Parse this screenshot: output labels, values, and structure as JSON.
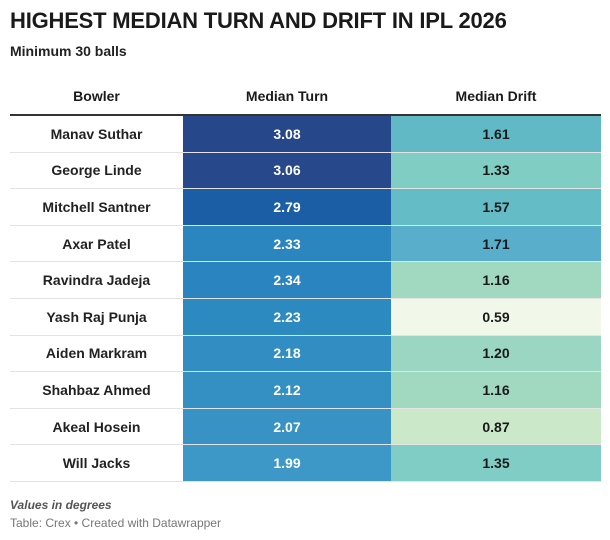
{
  "title": "HIGHEST MEDIAN TURN AND DRIFT IN IPL 2026",
  "subtitle": "Minimum 30 balls",
  "note": "Values in degrees",
  "source": "Table: Crex • Created with Datawrapper",
  "chart_data": {
    "type": "table",
    "columns": [
      "Bowler",
      "Median Turn",
      "Median Drift"
    ],
    "rows": [
      {
        "bowler": "Manav Suthar",
        "turn": "3.08",
        "drift": "1.61",
        "turn_color": "#26488a",
        "drift_color": "#62b9c6"
      },
      {
        "bowler": "George Linde",
        "turn": "3.06",
        "drift": "1.33",
        "turn_color": "#27498b",
        "drift_color": "#80cdc4"
      },
      {
        "bowler": "Mitchell Santner",
        "turn": "2.79",
        "drift": "1.57",
        "turn_color": "#1c5ea5",
        "drift_color": "#64bcc7"
      },
      {
        "bowler": "Axar Patel",
        "turn": "2.33",
        "drift": "1.71",
        "turn_color": "#2b85bf",
        "drift_color": "#58aecb"
      },
      {
        "bowler": "Ravindra Jadeja",
        "turn": "2.34",
        "drift": "1.16",
        "turn_color": "#2a84bf",
        "drift_color": "#a0d8c0"
      },
      {
        "bowler": "Yash Raj Punja",
        "turn": "2.23",
        "drift": "0.59",
        "turn_color": "#2d8ac1",
        "drift_color": "#f2f8e9"
      },
      {
        "bowler": "Aiden Markram",
        "turn": "2.18",
        "drift": "1.20",
        "turn_color": "#318dc2",
        "drift_color": "#9ad6c1"
      },
      {
        "bowler": "Shahbaz Ahmed",
        "turn": "2.12",
        "drift": "1.16",
        "turn_color": "#348fc3",
        "drift_color": "#a0d8c0"
      },
      {
        "bowler": "Akeal Hosein",
        "turn": "2.07",
        "drift": "0.87",
        "turn_color": "#3892c4",
        "drift_color": "#cbe9c9"
      },
      {
        "bowler": "Will Jacks",
        "turn": "1.99",
        "drift": "1.35",
        "turn_color": "#3d97c7",
        "drift_color": "#7fcdc4"
      }
    ]
  }
}
